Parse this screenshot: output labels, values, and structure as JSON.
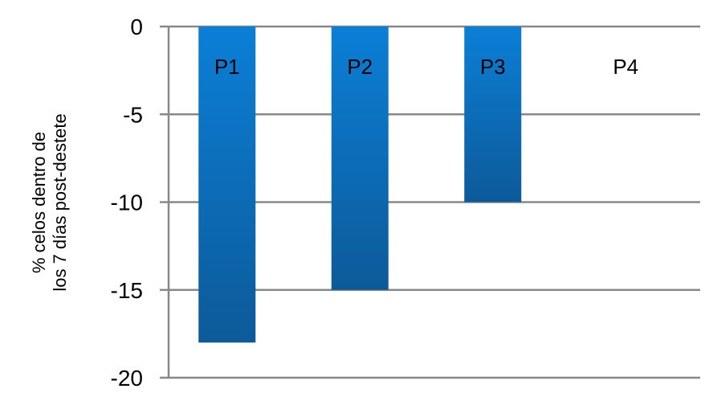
{
  "chart_data": {
    "type": "bar",
    "categories": [
      "P1",
      "P2",
      "P3",
      "P4"
    ],
    "values": [
      -18,
      -15,
      -10,
      0
    ],
    "title": "",
    "xlabel": "",
    "ylabel_lines": [
      "% celos dentro de",
      "los 7 días post-destete"
    ],
    "ylim": [
      -20,
      0
    ],
    "yticks": [
      0,
      -5,
      -10,
      -15,
      -20
    ],
    "ytick_labels": [
      "0",
      "-5",
      "-10",
      "-15",
      "-20"
    ],
    "grid": true,
    "category_labels_inside_top": true,
    "colors": {
      "bar_top": "#0b7fd6",
      "bar_bottom": "#0d5a99",
      "grid": "#888888",
      "text": "#000000"
    }
  }
}
